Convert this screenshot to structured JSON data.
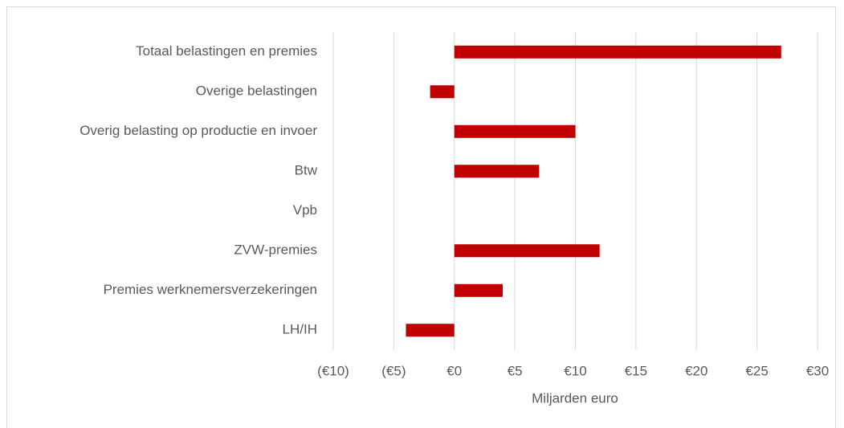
{
  "chart_data": {
    "type": "hbar",
    "categories": [
      "Totaal belastingen en premies",
      "Overige belastingen",
      "Overig belasting op productie en invoer",
      "Btw",
      "Vpb",
      "ZVW-premies",
      "Premies werknemersverzekeringen",
      "LH/IH"
    ],
    "values": [
      27,
      -2,
      10,
      7,
      0,
      12,
      4,
      -4
    ],
    "color": "#c00000",
    "xlabel": "Miljarden euro",
    "xlim": [
      -10,
      30
    ],
    "xticks": [
      {
        "value": -10,
        "label": "(€10)"
      },
      {
        "value": -5,
        "label": "(€5)"
      },
      {
        "value": 0,
        "label": "€0"
      },
      {
        "value": 5,
        "label": "€5"
      },
      {
        "value": 10,
        "label": "€10"
      },
      {
        "value": 15,
        "label": "€15"
      },
      {
        "value": 20,
        "label": "€20"
      },
      {
        "value": 25,
        "label": "€25"
      },
      {
        "value": 30,
        "label": "€30"
      }
    ],
    "grid": true
  }
}
